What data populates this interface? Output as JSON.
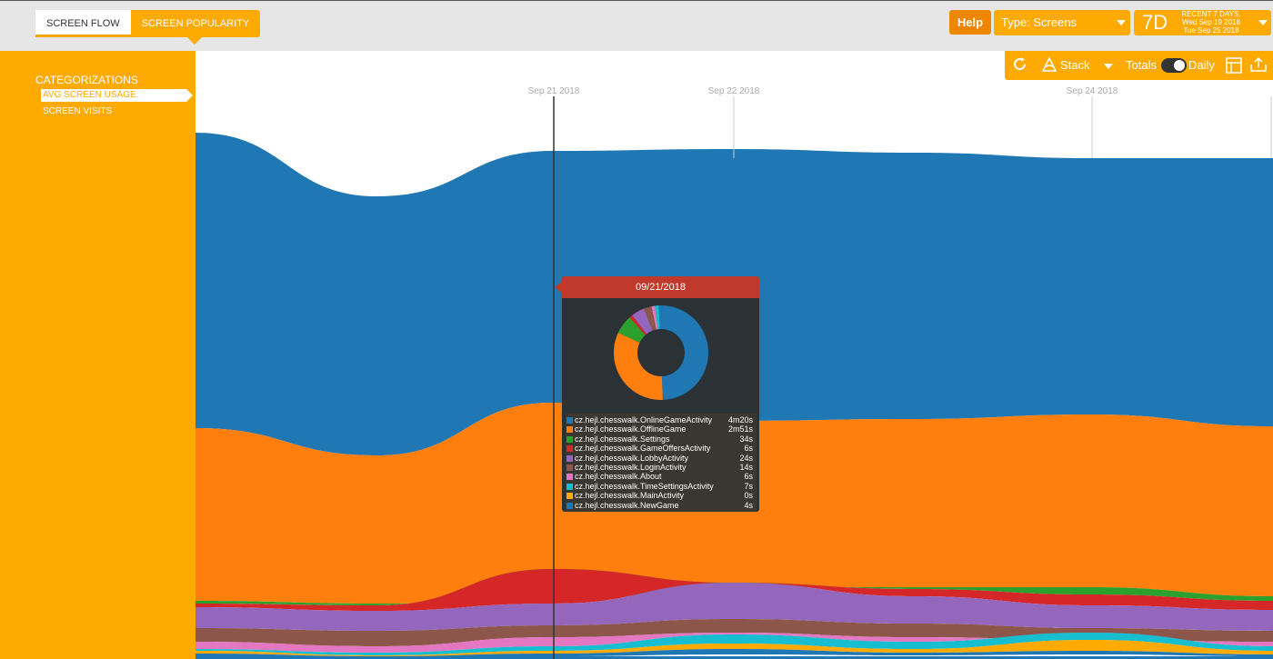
{
  "tabs": [
    {
      "label": "SCREEN FLOW"
    },
    {
      "label": "SCREEN POPULARITY"
    }
  ],
  "header": {
    "help_label": "Help",
    "type_select_value": "Type: Screens",
    "range_big": "7D",
    "range_line1": "RECENT 7 DAYS,",
    "range_line2": "Wed Sep 19 2018",
    "range_line3": "Tue Sep 25 2018"
  },
  "sidebar": {
    "title": "CATEGORIZATIONS",
    "items": [
      {
        "label": "AVG SCREEN USAGE"
      },
      {
        "label": "SCREEN VISITS"
      }
    ]
  },
  "toolbar": {
    "stack_label": "Stack",
    "totals_label": "Totals",
    "daily_label": "Daily"
  },
  "colors": {
    "accent": "#ffaa00",
    "help": "#ee8600",
    "tooltip_header": "#c0392b"
  },
  "icons": [
    "refresh-icon",
    "stack-icon",
    "table-icon",
    "export-icon"
  ],
  "chart_data": {
    "type": "area",
    "stacked": true,
    "x_ticks": [
      "Sep 21 2018",
      "Sep 22 2018",
      "Sep 24 2018"
    ],
    "hover_date": "09/21/2018",
    "series": [
      {
        "name": "cz.hejl.chesswalk.OnlineGameActivity",
        "value": "4m20s",
        "seconds": 260,
        "color": "#1f77b4"
      },
      {
        "name": "cz.hejl.chesswalk.OfflineGame",
        "value": "2m51s",
        "seconds": 171,
        "color": "#ff7f0e"
      },
      {
        "name": "cz.hejl.chesswalk.Settings",
        "value": "34s",
        "seconds": 34,
        "color": "#2ca02c"
      },
      {
        "name": "cz.hejl.chesswalk.GameOffersActivity",
        "value": "6s",
        "seconds": 6,
        "color": "#d62728"
      },
      {
        "name": "cz.hejl.chesswalk.LobbyActivity",
        "value": "24s",
        "seconds": 24,
        "color": "#9467bd"
      },
      {
        "name": "cz.hejl.chesswalk.LoginActivity",
        "value": "14s",
        "seconds": 14,
        "color": "#8c564b"
      },
      {
        "name": "cz.hejl.chesswalk.About",
        "value": "6s",
        "seconds": 6,
        "color": "#e377c2"
      },
      {
        "name": "cz.hejl.chesswalk.TimeSettingsActivity",
        "value": "7s",
        "seconds": 7,
        "color": "#17becf"
      },
      {
        "name": "cz.hejl.chesswalk.MainActivity",
        "value": "0s",
        "seconds": 0,
        "color": "#ffaa00"
      },
      {
        "name": "cz.hejl.chesswalk.NewGame",
        "value": "4s",
        "seconds": 4,
        "color": "#1f77b4"
      }
    ]
  }
}
